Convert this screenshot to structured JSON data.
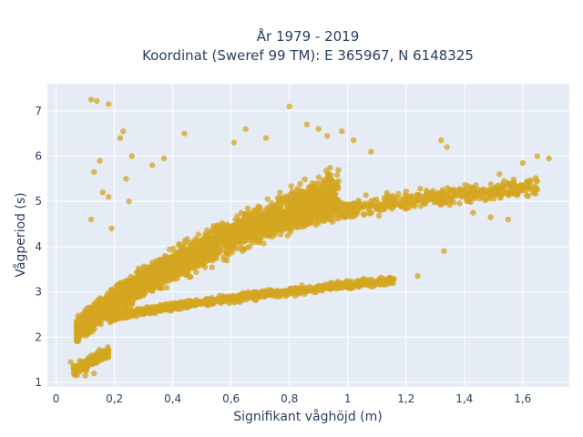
{
  "chart_data": {
    "type": "scatter",
    "title_line1": "År 1979 - 2019",
    "title_line2": "Koordinat (Sweref 99 TM): E 365967, N 6148325",
    "xlabel": "Signifikant våghöjd (m)",
    "ylabel": "Vågperiod (s)",
    "xlim": [
      -0.03,
      1.76
    ],
    "ylim": [
      0.9,
      7.6
    ],
    "x_ticks": [
      0,
      0.2,
      0.4,
      0.6,
      0.8,
      1.0,
      1.2,
      1.4,
      1.6
    ],
    "x_tick_labels": [
      "0",
      "0,2",
      "0,4",
      "0,6",
      "0,8",
      "1",
      "1,2",
      "1,4",
      "1,6"
    ],
    "y_ticks": [
      1,
      2,
      3,
      4,
      5,
      6,
      7
    ],
    "y_tick_labels": [
      "1",
      "2",
      "3",
      "4",
      "5",
      "6",
      "7"
    ],
    "grid": true,
    "background": "#e5ecf6",
    "marker_color": "#d4a520",
    "clusters": [
      {
        "x_range": [
          0.05,
          0.95
        ],
        "y_start": 1.4,
        "y_end": 5.4,
        "density": "dense",
        "description_key": "main"
      },
      {
        "x_range": [
          0.2,
          1.15
        ],
        "y_start": 2.2,
        "y_end": 3.15,
        "density": "dense",
        "description_key": "lower-branch"
      },
      {
        "x_range": [
          0.6,
          1.68
        ],
        "y_start": 4.1,
        "y_end": 5.9,
        "density": "medium",
        "description_key": "upper-branch"
      }
    ],
    "outliers": [
      {
        "x": 0.12,
        "y": 7.25
      },
      {
        "x": 0.14,
        "y": 7.22
      },
      {
        "x": 0.18,
        "y": 7.15
      },
      {
        "x": 0.8,
        "y": 7.1
      },
      {
        "x": 0.13,
        "y": 5.65
      },
      {
        "x": 0.15,
        "y": 5.9
      },
      {
        "x": 0.16,
        "y": 5.2
      },
      {
        "x": 0.18,
        "y": 5.1
      },
      {
        "x": 0.12,
        "y": 4.6
      },
      {
        "x": 0.19,
        "y": 4.4
      },
      {
        "x": 0.24,
        "y": 5.5
      },
      {
        "x": 0.25,
        "y": 5.0
      },
      {
        "x": 0.22,
        "y": 6.4
      },
      {
        "x": 0.23,
        "y": 6.55
      },
      {
        "x": 0.26,
        "y": 6.0
      },
      {
        "x": 0.33,
        "y": 5.8
      },
      {
        "x": 0.37,
        "y": 5.95
      },
      {
        "x": 0.44,
        "y": 6.5
      },
      {
        "x": 0.61,
        "y": 6.3
      },
      {
        "x": 0.65,
        "y": 6.6
      },
      {
        "x": 0.72,
        "y": 6.4
      },
      {
        "x": 0.86,
        "y": 6.7
      },
      {
        "x": 0.9,
        "y": 6.6
      },
      {
        "x": 0.93,
        "y": 6.45
      },
      {
        "x": 0.98,
        "y": 6.55
      },
      {
        "x": 1.02,
        "y": 6.35
      },
      {
        "x": 1.08,
        "y": 6.1
      },
      {
        "x": 1.32,
        "y": 6.35
      },
      {
        "x": 1.34,
        "y": 6.2
      },
      {
        "x": 1.24,
        "y": 3.35
      },
      {
        "x": 1.33,
        "y": 3.9
      },
      {
        "x": 1.43,
        "y": 4.75
      },
      {
        "x": 1.49,
        "y": 4.65
      },
      {
        "x": 1.52,
        "y": 5.6
      },
      {
        "x": 1.57,
        "y": 5.4
      },
      {
        "x": 1.6,
        "y": 5.85
      },
      {
        "x": 1.65,
        "y": 6.0
      },
      {
        "x": 1.69,
        "y": 5.95
      },
      {
        "x": 1.55,
        "y": 4.6
      },
      {
        "x": 0.1,
        "y": 1.15
      },
      {
        "x": 0.08,
        "y": 1.3
      },
      {
        "x": 0.13,
        "y": 1.2
      },
      {
        "x": 0.05,
        "y": 1.45
      },
      {
        "x": 0.06,
        "y": 1.35
      }
    ]
  }
}
